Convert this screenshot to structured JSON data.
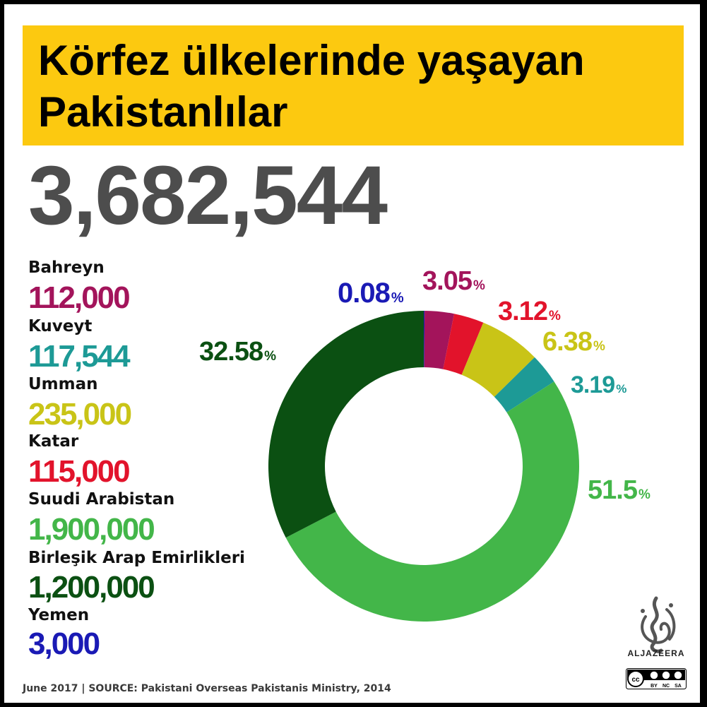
{
  "title": {
    "line1": "Körfez ülkelerinde yaşayan",
    "line2": "Pakistanlılar"
  },
  "total": "3,682,544",
  "countries": [
    {
      "name": "Bahreyn",
      "value": "112,000",
      "color": "#a3145b"
    },
    {
      "name": "Kuveyt",
      "value": "117,544",
      "color": "#1d9a96"
    },
    {
      "name": "Umman",
      "value": "235,000",
      "color": "#c9c417"
    },
    {
      "name": "Katar",
      "value": "115,000",
      "color": "#e2132b"
    },
    {
      "name": "Suudi Arabistan",
      "value": "1,900,000",
      "color": "#43b649"
    },
    {
      "name": "Birleşik Arap Emirlikleri",
      "value": "1,200,000",
      "color": "#0b5012"
    },
    {
      "name": "Yemen",
      "value": "3,000",
      "color": "#1a1ab5"
    }
  ],
  "chart_data": {
    "type": "pie",
    "donut": true,
    "start": "top",
    "direction": "clockwise",
    "labels": [
      "Yemen",
      "Bahreyn",
      "Katar",
      "Umman",
      "Kuveyt",
      "Suudi Arabistan",
      "Birleşik Arap Emirlikleri"
    ],
    "values": [
      0.08,
      3.05,
      3.12,
      6.38,
      3.19,
      51.5,
      32.58
    ],
    "value_labels": [
      "0.08",
      "3.05",
      "3.12",
      "6.38",
      "3.19",
      "51.5",
      "32.58"
    ],
    "unit": "%",
    "colors": [
      "#1a1ab5",
      "#a3145b",
      "#e2132b",
      "#c9c417",
      "#1d9a96",
      "#43b649",
      "#0b5012"
    ]
  },
  "brand": {
    "name": "ALJAZEERA",
    "license": [
      "BY",
      "NC",
      "SA"
    ]
  },
  "footer": {
    "text": "June 2017  |  SOURCE: Pakistani Overseas Pakistanis Ministry, 2014"
  }
}
